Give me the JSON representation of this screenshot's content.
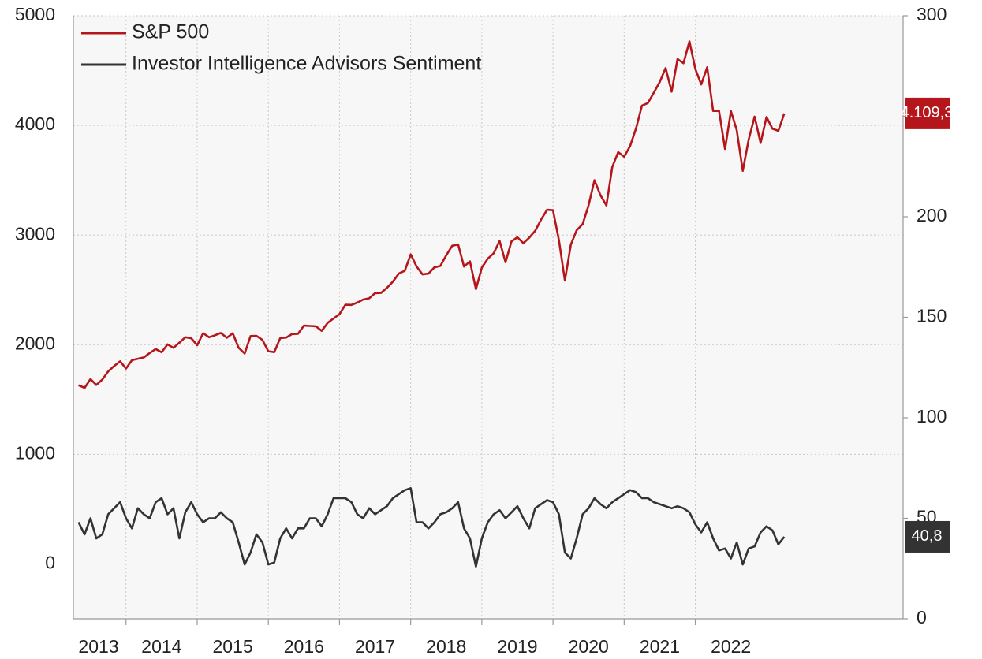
{
  "chart_data": {
    "type": "line",
    "legend": "upper left",
    "grid": true,
    "x": [
      2013.333,
      2013.417,
      2013.5,
      2013.583,
      2013.667,
      2013.75,
      2013.833,
      2013.917,
      2014,
      2014.083,
      2014.167,
      2014.25,
      2014.333,
      2014.417,
      2014.5,
      2014.583,
      2014.667,
      2014.75,
      2014.833,
      2014.917,
      2015,
      2015.083,
      2015.167,
      2015.25,
      2015.333,
      2015.417,
      2015.5,
      2015.583,
      2015.667,
      2015.75,
      2015.833,
      2015.917,
      2016,
      2016.083,
      2016.167,
      2016.25,
      2016.333,
      2016.417,
      2016.5,
      2016.583,
      2016.667,
      2016.75,
      2016.833,
      2016.917,
      2017,
      2017.083,
      2017.167,
      2017.25,
      2017.333,
      2017.417,
      2017.5,
      2017.583,
      2017.667,
      2017.75,
      2017.833,
      2017.917,
      2018,
      2018.083,
      2018.167,
      2018.25,
      2018.333,
      2018.417,
      2018.5,
      2018.583,
      2018.667,
      2018.75,
      2018.833,
      2018.917,
      2019,
      2019.083,
      2019.167,
      2019.25,
      2019.333,
      2019.417,
      2019.5,
      2019.583,
      2019.667,
      2019.75,
      2019.833,
      2019.917,
      2020,
      2020.083,
      2020.167,
      2020.25,
      2020.333,
      2020.417,
      2020.5,
      2020.583,
      2020.667,
      2020.75,
      2020.833,
      2020.917,
      2021,
      2021.083,
      2021.167,
      2021.25,
      2021.333,
      2021.417,
      2021.5,
      2021.583,
      2021.667,
      2021.75,
      2021.833,
      2021.917,
      2022,
      2022.083,
      2022.167,
      2022.25,
      2022.333,
      2022.417,
      2022.5,
      2022.583,
      2022.667,
      2022.75,
      2022.833,
      2022.917,
      2023,
      2023.083,
      2023.167,
      2023.25
    ],
    "xlim": [
      2013.26,
      2024.92
    ],
    "xticks": [
      {
        "value": 2013,
        "label": "2013"
      },
      {
        "value": 2014,
        "label": "2014"
      },
      {
        "value": 2015,
        "label": "2015"
      },
      {
        "value": 2016,
        "label": "2016"
      },
      {
        "value": 2017,
        "label": "2017"
      },
      {
        "value": 2018,
        "label": "2018"
      },
      {
        "value": 2019,
        "label": "2019"
      },
      {
        "value": 2020,
        "label": "2020"
      },
      {
        "value": 2021,
        "label": "2021"
      },
      {
        "value": 2022,
        "label": "2022"
      }
    ],
    "ylim": [
      -500,
      5000
    ],
    "yticks": [
      0,
      1000,
      2000,
      3000,
      4000,
      5000
    ],
    "y2lim": [
      0,
      300
    ],
    "y2ticks": [
      0,
      50,
      100,
      150,
      200,
      250,
      300
    ],
    "series": [
      {
        "name": "S&P 500",
        "color": "#b5161b",
        "values": [
          1630,
          1606,
          1686,
          1633,
          1682,
          1757,
          1806,
          1848,
          1783,
          1859,
          1872,
          1884,
          1924,
          1960,
          1931,
          2003,
          1972,
          2018,
          2068,
          2059,
          1995,
          2105,
          2068,
          2086,
          2107,
          2063,
          2104,
          1972,
          1920,
          2079,
          2080,
          2044,
          1940,
          1932,
          2060,
          2065,
          2097,
          2099,
          2174,
          2171,
          2168,
          2126,
          2199,
          2239,
          2279,
          2364,
          2363,
          2384,
          2412,
          2423,
          2470,
          2472,
          2519,
          2575,
          2648,
          2674,
          2824,
          2714,
          2641,
          2648,
          2705,
          2718,
          2816,
          2902,
          2914,
          2712,
          2760,
          2507,
          2704,
          2784,
          2834,
          2946,
          2752,
          2942,
          2980,
          2926,
          2977,
          3038,
          3141,
          3231,
          3226,
          2954,
          2585,
          2912,
          3044,
          3100,
          3271,
          3500,
          3363,
          3270,
          3622,
          3756,
          3714,
          3811,
          3973,
          4181,
          4204,
          4298,
          4395,
          4523,
          4308,
          4605,
          4567,
          4766,
          4516,
          4374,
          4530,
          4132,
          4132,
          3785,
          4130,
          3955,
          3586,
          3872,
          4080,
          3840,
          4077,
          3970,
          3950,
          4109.3
        ],
        "value_labels": [
          null,
          null,
          null,
          null,
          null,
          null,
          null,
          null,
          null,
          null,
          null,
          null,
          null,
          null,
          null,
          null,
          null,
          null,
          null,
          null,
          null,
          null,
          null,
          null,
          null,
          null,
          null,
          null,
          null,
          null,
          null,
          null,
          null,
          null,
          null,
          null,
          null,
          null,
          null,
          null,
          null,
          null,
          null,
          null,
          null,
          null,
          null,
          null,
          null,
          null,
          null,
          null,
          null,
          null,
          null,
          null,
          null,
          null,
          null,
          null,
          null,
          null,
          null,
          null,
          null,
          null,
          null,
          null,
          null,
          null,
          null,
          null,
          null,
          null,
          null,
          null,
          null,
          null,
          null,
          null,
          null,
          null,
          null,
          null,
          null,
          null,
          null,
          null,
          null,
          null,
          null,
          null,
          null,
          null,
          null,
          null,
          null,
          null,
          null,
          null,
          null,
          null,
          null,
          null,
          null,
          null,
          null,
          null,
          null,
          null,
          null,
          null,
          null,
          null,
          null,
          null,
          null,
          null,
          null,
          "4.109,3"
        ]
      },
      {
        "name": "Investor Intelligence Advisors Sentiment",
        "color": "#333333",
        "axis": "y2",
        "values": [
          48,
          42,
          50,
          40,
          42,
          52,
          55,
          58,
          50,
          45,
          55,
          52,
          50,
          58,
          60,
          52,
          55,
          40,
          53,
          58,
          52,
          48,
          50,
          50,
          53,
          50,
          48,
          38,
          27,
          33,
          42,
          38,
          27,
          28,
          40,
          45,
          40,
          45,
          45,
          50,
          50,
          46,
          52,
          60,
          60,
          60,
          58,
          52,
          50,
          55,
          52,
          54,
          56,
          60,
          62,
          64,
          65,
          48,
          48,
          45,
          48,
          52,
          53,
          55,
          58,
          45,
          40,
          26,
          40,
          48,
          52,
          54,
          50,
          53,
          56,
          50,
          45,
          55,
          57,
          59,
          58,
          52,
          33,
          30,
          40,
          52,
          55,
          60,
          57,
          55,
          58,
          60,
          62,
          64,
          63,
          60,
          60,
          58,
          57,
          56,
          55,
          56,
          55,
          53,
          47,
          43,
          48,
          40,
          34,
          35,
          30,
          38,
          27,
          35,
          36,
          43,
          46,
          44,
          37,
          40.8
        ],
        "value_labels": [
          null,
          null,
          null,
          null,
          null,
          null,
          null,
          null,
          null,
          null,
          null,
          null,
          null,
          null,
          null,
          null,
          null,
          null,
          null,
          null,
          null,
          null,
          null,
          null,
          null,
          null,
          null,
          null,
          null,
          null,
          null,
          null,
          null,
          null,
          null,
          null,
          null,
          null,
          null,
          null,
          null,
          null,
          null,
          null,
          null,
          null,
          null,
          null,
          null,
          null,
          null,
          null,
          null,
          null,
          null,
          null,
          null,
          null,
          null,
          null,
          null,
          null,
          null,
          null,
          null,
          null,
          null,
          null,
          null,
          null,
          null,
          null,
          null,
          null,
          null,
          null,
          null,
          null,
          null,
          null,
          null,
          null,
          null,
          null,
          null,
          null,
          null,
          null,
          null,
          null,
          null,
          null,
          null,
          null,
          null,
          null,
          null,
          null,
          null,
          null,
          null,
          null,
          null,
          null,
          null,
          null,
          null,
          null,
          null,
          null,
          null,
          null,
          null,
          null,
          null,
          null,
          null,
          null,
          null,
          "40,8"
        ]
      }
    ]
  }
}
